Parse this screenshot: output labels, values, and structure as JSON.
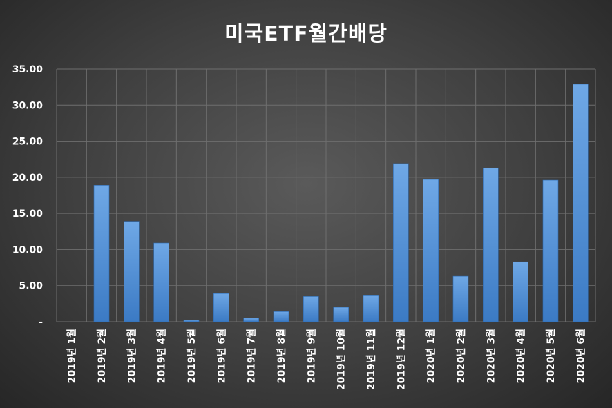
{
  "chart_data": {
    "type": "bar",
    "title": "미국ETF월간배당",
    "categories": [
      "2019년 1월",
      "2019년 2월",
      "2019년 3월",
      "2019년 4월",
      "2019년 5월",
      "2019년 6월",
      "2019년 7월",
      "2019년 8월",
      "2019년 9월",
      "2019년 10월",
      "2019년 11월",
      "2019년 12월",
      "2020년 1월",
      "2020년 2월",
      "2020년 3월",
      "2020년 4월",
      "2020년 5월",
      "2020년 6월"
    ],
    "values": [
      0,
      18.9,
      13.9,
      10.9,
      0.2,
      3.9,
      0.5,
      1.4,
      3.5,
      2.0,
      3.6,
      21.9,
      19.7,
      6.3,
      21.3,
      8.3,
      19.6,
      32.9
    ],
    "ylim": [
      0,
      35
    ],
    "yticks": [
      0,
      5,
      10,
      15,
      20,
      25,
      30,
      35
    ],
    "ytick_labels": [
      "-",
      "5.00",
      "10.00",
      "15.00",
      "20.00",
      "25.00",
      "30.00",
      "35.00"
    ],
    "grid": true,
    "legend": "none",
    "xlabel": "",
    "ylabel": "",
    "colors": {
      "bar_top": "#6fa8e6",
      "bar_bottom": "#3b7ac4",
      "grid": "#6e6e6e",
      "text": "#ffffff"
    }
  }
}
